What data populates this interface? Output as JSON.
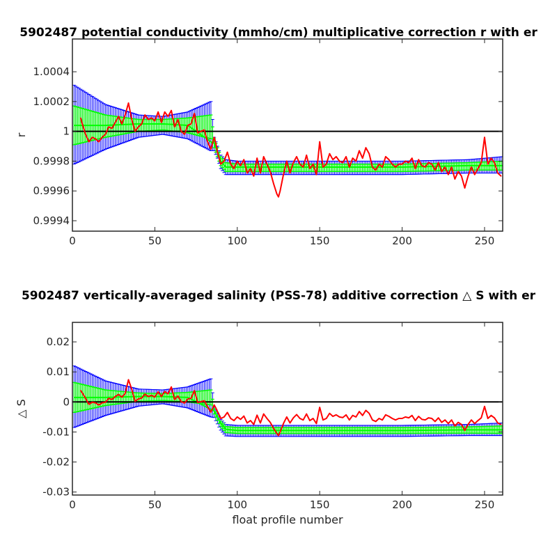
{
  "chart_data": [
    {
      "type": "line",
      "title": "5902487 potential conductivity (mmho/cm) multiplicative correction r with er",
      "xlabel": "",
      "ylabel": "r",
      "xlim": [
        0,
        261
      ],
      "ylim": [
        0.99933,
        1.00062
      ],
      "xticks": [
        0,
        50,
        100,
        150,
        200,
        250
      ],
      "xtick_labels": [
        "0",
        "50",
        "100",
        "150",
        "200",
        "250"
      ],
      "yticks": [
        0.9994,
        0.9996,
        0.9998,
        1,
        1.0002,
        1.0004
      ],
      "ytick_labels": [
        "0.9994",
        "0.9996",
        "0.9998",
        "1",
        "1.0002",
        "1.0004"
      ],
      "reference_value": 1,
      "grid": false,
      "colors": {
        "reference": "#000000",
        "error_bars": "#0000ff",
        "fit": "#00ff00",
        "raw": "#ff0000"
      },
      "series": [
        {
          "kind": "reference",
          "x": [
            0,
            261
          ],
          "y": [
            1,
            1
          ]
        },
        {
          "kind": "fit_with_error",
          "x": [
            1,
            20,
            40,
            55,
            70,
            84,
            86,
            88,
            90,
            93,
            100,
            150,
            200,
            240,
            261
          ],
          "y": [
            1.00004,
            1.00004,
            1.00005,
            1.00005,
            1.00004,
            0.99993,
            0.99992,
            0.99986,
            0.9998,
            0.99976,
            0.99976,
            0.99976,
            0.99976,
            0.99977,
            0.99977
          ],
          "error_high": [
            1.00031,
            1.00018,
            1.00011,
            1.0001,
            1.00013,
            1.0002,
            0.99996,
            0.9999,
            0.99984,
            0.99981,
            0.9998,
            0.9998,
            0.9998,
            0.99981,
            0.99983
          ],
          "error_low": [
            0.99978,
            0.99988,
            0.99996,
            0.99998,
            0.99995,
            0.99987,
            0.99987,
            0.99982,
            0.99975,
            0.99971,
            0.99971,
            0.99971,
            0.99971,
            0.99972,
            0.99972
          ],
          "fit_error_high": [
            1.00017,
            1.00011,
            1.00008,
            1.00008,
            1.00009,
            1.00011,
            0.99995,
            0.99989,
            0.99983,
            0.99979,
            0.99978,
            0.99978,
            0.99978,
            0.99979,
            0.9998
          ],
          "fit_error_low": [
            0.99991,
            0.99996,
            1.0,
            1.00001,
            0.99999,
            0.99995,
            0.99989,
            0.99983,
            0.99977,
            0.99973,
            0.99973,
            0.99973,
            0.99973,
            0.99974,
            0.99974
          ]
        },
        {
          "kind": "raw",
          "x": [
            5,
            6,
            8,
            10,
            12,
            14,
            16,
            18,
            20,
            22,
            24,
            26,
            28,
            30,
            32,
            34,
            36,
            38,
            40,
            42,
            44,
            46,
            48,
            50,
            52,
            54,
            56,
            58,
            60,
            62,
            64,
            66,
            68,
            70,
            72,
            74,
            76,
            78,
            80,
            82,
            84,
            86,
            87,
            88,
            89,
            90,
            92,
            94,
            96,
            98,
            100,
            102,
            104,
            106,
            108,
            110,
            112,
            114,
            116,
            118,
            120,
            122,
            124,
            125,
            126,
            128,
            130,
            132,
            134,
            136,
            138,
            140,
            142,
            144,
            146,
            148,
            150,
            152,
            154,
            156,
            158,
            160,
            162,
            164,
            166,
            168,
            170,
            172,
            174,
            176,
            178,
            180,
            182,
            184,
            186,
            188,
            190,
            192,
            194,
            196,
            198,
            200,
            202,
            204,
            206,
            208,
            210,
            212,
            214,
            216,
            218,
            220,
            222,
            224,
            226,
            228,
            230,
            232,
            234,
            236,
            238,
            240,
            242,
            244,
            246,
            248,
            250,
            252,
            254,
            256,
            258,
            260
          ],
          "y": [
            1.00009,
            1.00005,
            0.99998,
            0.99993,
            0.99996,
            0.99995,
            0.99993,
            0.99996,
            0.99998,
            1.00003,
            1.00002,
            1.00006,
            1.0001,
            1.00005,
            1.00011,
            1.00019,
            1.00008,
            1.0,
            1.00003,
            1.00005,
            1.00011,
            1.00008,
            1.00009,
            1.00007,
            1.00013,
            1.00006,
            1.00013,
            1.0001,
            1.00014,
            1.00003,
            1.00008,
            1.0,
            0.99998,
            1.00004,
            1.00005,
            1.00012,
            0.99999,
            1.0,
            1.00001,
            0.99993,
            0.99988,
            0.99996,
            0.99992,
            0.99986,
            0.99982,
            0.99978,
            0.9998,
            0.99986,
            0.99978,
            0.99975,
            0.9998,
            0.99977,
            0.99981,
            0.99972,
            0.99975,
            0.9997,
            0.99982,
            0.99972,
            0.99983,
            0.99978,
            0.99973,
            0.99965,
            0.99958,
            0.99956,
            0.9996,
            0.99971,
            0.9998,
            0.99972,
            0.99979,
            0.99983,
            0.99978,
            0.99976,
            0.99984,
            0.99975,
            0.99978,
            0.99971,
            0.99993,
            0.99976,
            0.99978,
            0.99985,
            0.99981,
            0.99983,
            0.9998,
            0.99979,
            0.99983,
            0.99976,
            0.99982,
            0.9998,
            0.99987,
            0.99982,
            0.99989,
            0.99985,
            0.99976,
            0.99974,
            0.99978,
            0.99976,
            0.99983,
            0.99981,
            0.99978,
            0.99976,
            0.99978,
            0.99978,
            0.9998,
            0.99979,
            0.99982,
            0.99975,
            0.99981,
            0.99977,
            0.99976,
            0.99979,
            0.99978,
            0.99974,
            0.99979,
            0.99973,
            0.99976,
            0.99971,
            0.99976,
            0.99968,
            0.99973,
            0.9997,
            0.99962,
            0.9997,
            0.99976,
            0.99971,
            0.99975,
            0.99979,
            0.99996,
            0.99978,
            0.99982,
            0.99979,
            0.99972,
            0.9997
          ]
        }
      ]
    },
    {
      "type": "line",
      "title": "5902487 vertically-averaged salinity (PSS-78) additive correction △ S with er",
      "xlabel": "float profile number",
      "ylabel": "△ S",
      "xlim": [
        0,
        261
      ],
      "ylim": [
        -0.031,
        0.0265
      ],
      "xticks": [
        0,
        50,
        100,
        150,
        200,
        250
      ],
      "xtick_labels": [
        "0",
        "50",
        "100",
        "150",
        "200",
        "250"
      ],
      "yticks": [
        -0.03,
        -0.02,
        -0.01,
        0,
        0.01,
        0.02
      ],
      "ytick_labels": [
        "-0.03",
        "-0.02",
        "-0.01",
        "0",
        "0.01",
        "0.02"
      ],
      "reference_value": 0,
      "grid": false,
      "colors": {
        "reference": "#000000",
        "error_bars": "#0000ff",
        "fit": "#00ff00",
        "raw": "#ff0000"
      },
      "series": [
        {
          "kind": "reference",
          "x": [
            0,
            261
          ],
          "y": [
            0,
            0
          ]
        },
        {
          "kind": "fit_with_error",
          "x": [
            1,
            20,
            40,
            55,
            70,
            84,
            86,
            88,
            90,
            93,
            100,
            150,
            200,
            240,
            261
          ],
          "y": [
            0.0015,
            0.0015,
            0.0018,
            0.0018,
            0.0015,
            -0.0025,
            -0.003,
            -0.0051,
            -0.0072,
            -0.0091,
            -0.0095,
            -0.0095,
            -0.0095,
            -0.0093,
            -0.0093
          ],
          "error_high": [
            0.012,
            0.007,
            0.0043,
            0.004,
            0.005,
            0.0077,
            -0.0016,
            -0.0037,
            -0.0058,
            -0.0075,
            -0.0078,
            -0.0078,
            -0.0078,
            -0.0075,
            -0.007
          ],
          "error_low": [
            -0.0085,
            -0.0045,
            -0.0014,
            -0.0006,
            -0.002,
            -0.005,
            -0.0052,
            -0.0073,
            -0.0094,
            -0.0113,
            -0.0115,
            -0.0115,
            -0.0115,
            -0.0112,
            -0.0112
          ],
          "fit_error_high": [
            0.0065,
            0.004,
            0.003,
            0.0028,
            0.0032,
            0.004,
            -0.0022,
            -0.0043,
            -0.0064,
            -0.0082,
            -0.0085,
            -0.0085,
            -0.0085,
            -0.0083,
            -0.008
          ],
          "fit_error_low": [
            -0.0035,
            -0.0012,
            0.0002,
            0.0005,
            0.0,
            -0.001,
            -0.004,
            -0.0061,
            -0.0082,
            -0.0102,
            -0.0105,
            -0.0105,
            -0.0105,
            -0.0104,
            -0.0105
          ]
        },
        {
          "kind": "raw",
          "x": [
            5,
            6,
            8,
            10,
            12,
            14,
            16,
            18,
            20,
            22,
            24,
            26,
            28,
            30,
            32,
            34,
            36,
            38,
            40,
            42,
            44,
            46,
            48,
            50,
            52,
            54,
            56,
            58,
            60,
            62,
            64,
            66,
            68,
            70,
            72,
            74,
            76,
            78,
            80,
            82,
            84,
            86,
            87,
            88,
            89,
            90,
            92,
            94,
            96,
            98,
            100,
            102,
            104,
            106,
            108,
            110,
            112,
            114,
            116,
            118,
            120,
            122,
            124,
            125,
            126,
            128,
            130,
            132,
            134,
            136,
            138,
            140,
            142,
            144,
            146,
            148,
            150,
            152,
            154,
            156,
            158,
            160,
            162,
            164,
            166,
            168,
            170,
            172,
            174,
            176,
            178,
            180,
            182,
            184,
            186,
            188,
            190,
            192,
            194,
            196,
            198,
            200,
            202,
            204,
            206,
            208,
            210,
            212,
            214,
            216,
            218,
            220,
            222,
            224,
            226,
            228,
            230,
            232,
            234,
            236,
            238,
            240,
            242,
            244,
            246,
            248,
            250,
            252,
            254,
            256,
            258,
            260
          ],
          "y": [
            0.0038,
            0.003,
            0.0012,
            -0.0008,
            -0.0001,
            -0.0003,
            -0.001,
            -0.0003,
            -0.0001,
            0.0012,
            0.0008,
            0.0018,
            0.0025,
            0.0016,
            0.0028,
            0.0074,
            0.0042,
            0.0002,
            0.001,
            0.0013,
            0.0026,
            0.0018,
            0.0022,
            0.0016,
            0.0034,
            0.0018,
            0.0035,
            0.0027,
            0.005,
            0.0008,
            0.002,
            0.0001,
            -0.0004,
            0.001,
            0.0012,
            0.0038,
            -0.0002,
            0.0001,
            0.0004,
            -0.0016,
            -0.0034,
            -0.001,
            -0.002,
            -0.0032,
            -0.0043,
            -0.0055,
            -0.005,
            -0.0035,
            -0.0055,
            -0.0062,
            -0.005,
            -0.0058,
            -0.0047,
            -0.007,
            -0.0062,
            -0.0075,
            -0.0044,
            -0.007,
            -0.004,
            -0.0055,
            -0.0068,
            -0.0088,
            -0.0105,
            -0.0112,
            -0.01,
            -0.0072,
            -0.005,
            -0.007,
            -0.0053,
            -0.0042,
            -0.0055,
            -0.006,
            -0.004,
            -0.0062,
            -0.0055,
            -0.0072,
            -0.0018,
            -0.006,
            -0.0055,
            -0.0038,
            -0.0048,
            -0.0043,
            -0.005,
            -0.0052,
            -0.0043,
            -0.006,
            -0.0045,
            -0.005,
            -0.0032,
            -0.0045,
            -0.0028,
            -0.0038,
            -0.006,
            -0.0065,
            -0.0055,
            -0.006,
            -0.0043,
            -0.0048,
            -0.0055,
            -0.006,
            -0.0055,
            -0.0055,
            -0.005,
            -0.0053,
            -0.0045,
            -0.0062,
            -0.0048,
            -0.0058,
            -0.006,
            -0.0053,
            -0.0055,
            -0.0065,
            -0.0053,
            -0.0068,
            -0.006,
            -0.0072,
            -0.006,
            -0.008,
            -0.0068,
            -0.0075,
            -0.0095,
            -0.0075,
            -0.006,
            -0.0072,
            -0.0062,
            -0.0053,
            -0.0015,
            -0.0055,
            -0.0045,
            -0.0053,
            -0.007,
            -0.0075
          ]
        }
      ]
    }
  ]
}
